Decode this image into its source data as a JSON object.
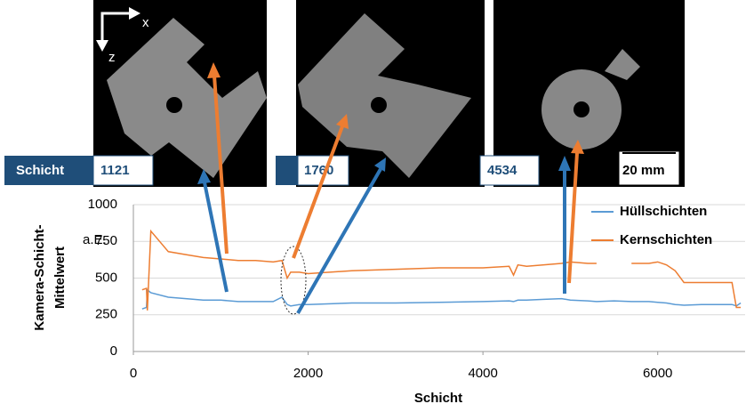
{
  "chart_data": {
    "type": "line",
    "xlabel": "Schicht",
    "ylabel": [
      "Kamera-Schicht-",
      "Mittelwert"
    ],
    "y_unit": "a.E.",
    "x": [
      100,
      150,
      160,
      200,
      400,
      600,
      800,
      1000,
      1200,
      1400,
      1600,
      1700,
      1760,
      1800,
      1900,
      2000,
      2500,
      3000,
      3500,
      4000,
      4300,
      4350,
      4400,
      4500,
      4700,
      4900,
      5000,
      5200,
      5300,
      5500,
      5700,
      5900,
      6000,
      6100,
      6200,
      6300,
      6500,
      6700,
      6850,
      6900,
      6950
    ],
    "series": [
      {
        "name": "Hüllschichten",
        "color": "#5b9bd5",
        "values": [
          290,
          300,
          420,
          400,
          370,
          360,
          350,
          350,
          340,
          340,
          340,
          370,
          320,
          310,
          320,
          320,
          330,
          330,
          335,
          340,
          345,
          340,
          350,
          350,
          355,
          360,
          350,
          345,
          340,
          345,
          340,
          340,
          335,
          330,
          320,
          315,
          320,
          320,
          320,
          310,
          330
        ]
      },
      {
        "name": "Kernschichten",
        "color": "#ed7d31",
        "values": [
          420,
          430,
          280,
          820,
          680,
          660,
          640,
          630,
          620,
          620,
          610,
          620,
          500,
          540,
          540,
          530,
          550,
          560,
          570,
          570,
          580,
          520,
          590,
          580,
          590,
          600,
          610,
          600,
          600,
          null,
          600,
          600,
          610,
          590,
          550,
          470,
          470,
          470,
          470,
          300,
          300
        ]
      }
    ],
    "xlim": [
      0,
      7000
    ],
    "xticks": [
      0,
      2000,
      4000,
      6000
    ],
    "ylim": [
      0,
      1000
    ],
    "yticks": [
      0,
      250,
      500,
      750,
      1000
    ],
    "grid": true,
    "legend": "upper right",
    "annotations": {
      "layer_label": "Schicht",
      "layers": [
        1121,
        1760,
        4534
      ],
      "scale_bar": "20 mm",
      "axis_x": "x",
      "axis_z": "z"
    }
  }
}
